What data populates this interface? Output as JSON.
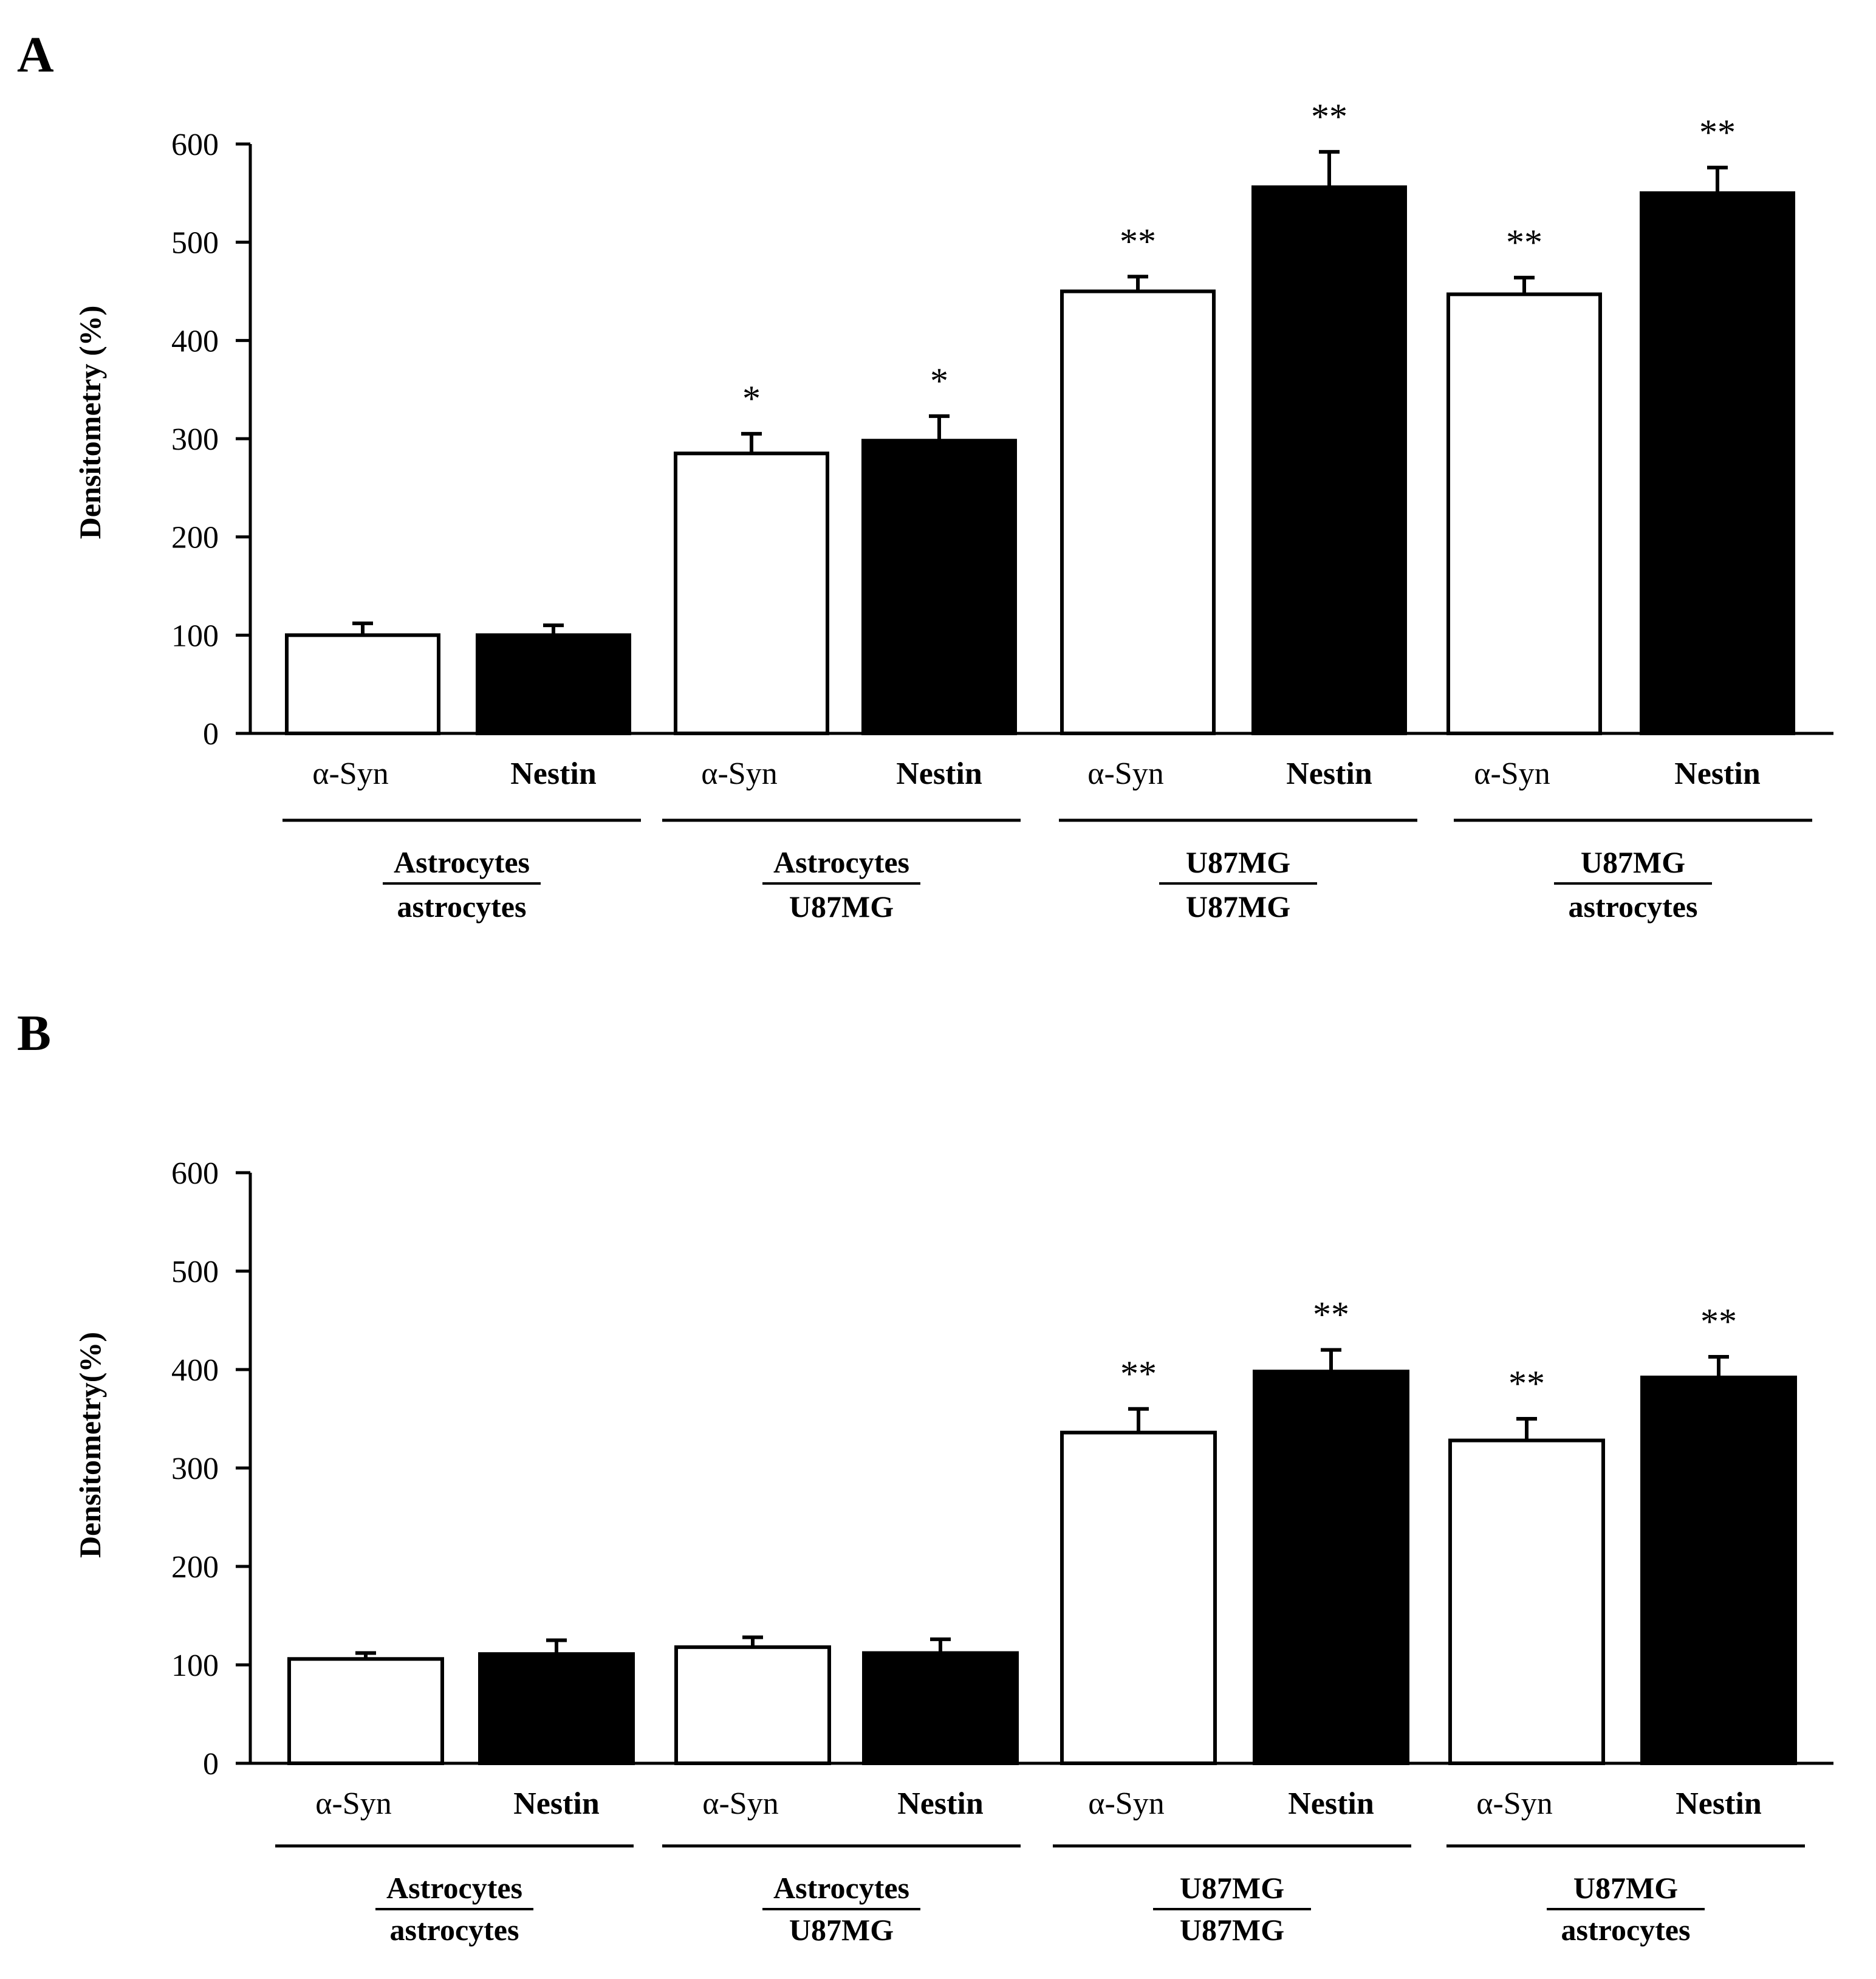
{
  "chart_data": [
    {
      "panel": "A",
      "type": "bar",
      "title": "",
      "xlabel": "",
      "ylabel": "Densitometry (%)",
      "ylim": [
        0,
        600
      ],
      "yticks": [
        "0",
        "100",
        "200",
        "300",
        "400",
        "500",
        "600"
      ],
      "bar_labels": [
        "α-Syn",
        "Nestin",
        "α-Syn",
        "Nestin",
        "α-Syn",
        "Nestin",
        "α-Syn",
        "Nestin"
      ],
      "groups": [
        {
          "top": "Astrocytes",
          "bottom": "astrocytes"
        },
        {
          "top": "Astrocytes",
          "bottom": "U87MG"
        },
        {
          "top": "U87MG",
          "bottom": "U87MG"
        },
        {
          "top": "U87MG",
          "bottom": "astrocytes"
        }
      ],
      "series": [
        {
          "name": "α-Syn",
          "color": "#ffffff",
          "values": [
            100,
            285,
            450,
            447
          ],
          "errors": [
            12,
            20,
            15,
            17
          ],
          "significance": [
            "",
            "*",
            "**",
            "**"
          ]
        },
        {
          "name": "Nestin",
          "color": "#000000",
          "values": [
            100,
            298,
            556,
            550
          ],
          "errors": [
            10,
            25,
            36,
            26
          ],
          "significance": [
            "",
            "*",
            "**",
            "**"
          ]
        }
      ]
    },
    {
      "panel": "B",
      "type": "bar",
      "title": "",
      "xlabel": "",
      "ylabel": "Densitometry(%)",
      "ylim": [
        0,
        600
      ],
      "yticks": [
        "0",
        "100",
        "200",
        "300",
        "400",
        "500",
        "600"
      ],
      "bar_labels": [
        "α-Syn",
        "Nestin",
        "α-Syn",
        "Nestin",
        "α-Syn",
        "Nestin",
        "α-Syn",
        "Nestin"
      ],
      "groups": [
        {
          "top": "Astrocytes",
          "bottom": "astrocytes"
        },
        {
          "top": "Astrocytes",
          "bottom": "U87MG"
        },
        {
          "top": "U87MG",
          "bottom": "U87MG"
        },
        {
          "top": "U87MG",
          "bottom": "astrocytes"
        }
      ],
      "series": [
        {
          "name": "α-Syn",
          "color": "#ffffff",
          "values": [
            106,
            118,
            336,
            328
          ],
          "errors": [
            6,
            10,
            24,
            22
          ],
          "significance": [
            "",
            "",
            "**",
            "**"
          ]
        },
        {
          "name": "Nestin",
          "color": "#000000",
          "values": [
            111,
            112,
            398,
            392
          ],
          "errors": [
            14,
            14,
            22,
            21
          ],
          "significance": [
            "",
            "",
            "**",
            "**"
          ]
        }
      ]
    }
  ]
}
